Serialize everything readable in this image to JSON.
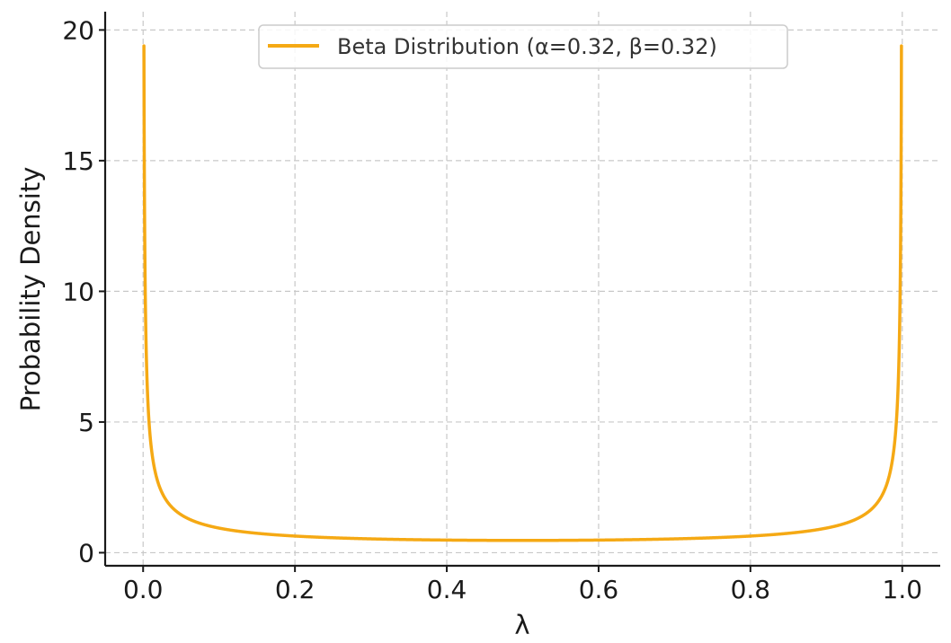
{
  "chart_data": {
    "type": "line",
    "title": "",
    "xlabel": "λ",
    "ylabel": "Probability Density",
    "xlim": [
      -0.05,
      1.05
    ],
    "ylim": [
      -0.5,
      20.7
    ],
    "x_ticks": [
      0.0,
      0.2,
      0.4,
      0.6,
      0.8,
      1.0
    ],
    "x_tick_labels": [
      "0.0",
      "0.2",
      "0.4",
      "0.6",
      "0.8",
      "1.0"
    ],
    "y_ticks": [
      0,
      5,
      10,
      15,
      20
    ],
    "y_tick_labels": [
      "0",
      "5",
      "10",
      "15",
      "20"
    ],
    "grid": true,
    "legend_position": "top-center",
    "series": [
      {
        "name": "Beta Distribution (α=0.32, β=0.32)",
        "color": "#f5a914",
        "alpha": 0.32,
        "beta": 0.32,
        "x": [
          0.0001,
          0.0005,
          0.001,
          0.002,
          0.005,
          0.01,
          0.02,
          0.05,
          0.1,
          0.2,
          0.3,
          0.4,
          0.5,
          0.6,
          0.7,
          0.8,
          0.9,
          0.95,
          0.98,
          0.99,
          0.995,
          0.998,
          0.999,
          0.9995,
          0.9999
        ],
        "y": [
          19.7,
          11.3,
          8.99,
          7.15,
          5.25,
          4.18,
          3.33,
          2.45,
          1.67,
          0.64,
          0.52,
          0.48,
          0.47,
          0.48,
          0.52,
          0.64,
          1.67,
          2.45,
          3.33,
          4.18,
          5.25,
          7.15,
          8.99,
          11.3,
          19.7
        ]
      }
    ]
  }
}
